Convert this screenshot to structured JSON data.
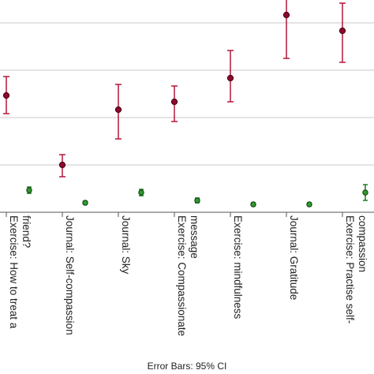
{
  "chart_data": {
    "type": "scatter",
    "categories": [
      "Exercise: How to treat a friend?",
      "Journal: Self-compassion",
      "Journal: Sky",
      "Exercise: Compassionate message",
      "Exercise: mindfulness",
      "Journal: Gratitude",
      "Exercise: Practise self-compassion"
    ],
    "category_label_lines": [
      [
        "Exercise: How to treat a",
        "friend?"
      ],
      [
        "Journal: Self-compassion"
      ],
      [
        "Journal: Sky"
      ],
      [
        "Exercise: Compassionate",
        "message"
      ],
      [
        "Exercise: mindfulness"
      ],
      [
        "Journal: Gratitude"
      ],
      [
        "Exercise: Practise self-",
        "compassion"
      ]
    ],
    "ylim": [
      0,
      4.5
    ],
    "grid": true,
    "series": [
      {
        "color": "#b5173b",
        "marker_color": "#8e0a2a",
        "values": [
          1.48,
          0.6,
          1.3,
          1.4,
          1.7,
          2.5,
          2.3
        ],
        "ci_low": [
          1.25,
          0.45,
          0.93,
          1.15,
          1.4,
          1.95,
          1.9
        ],
        "ci_high": [
          1.72,
          0.73,
          1.62,
          1.6,
          2.05,
          3.05,
          2.65
        ]
      },
      {
        "color": "#1e7a1e",
        "marker_color": "#2f9a2f",
        "values": [
          0.28,
          0.12,
          0.25,
          0.15,
          0.1,
          0.1,
          0.25
        ],
        "ci_low": [
          0.24,
          0.1,
          0.21,
          0.12,
          0.08,
          0.08,
          0.15
        ],
        "ci_high": [
          0.32,
          0.14,
          0.29,
          0.18,
          0.12,
          0.12,
          0.35
        ]
      }
    ]
  },
  "footnote": "Error Bars: 95% CI"
}
